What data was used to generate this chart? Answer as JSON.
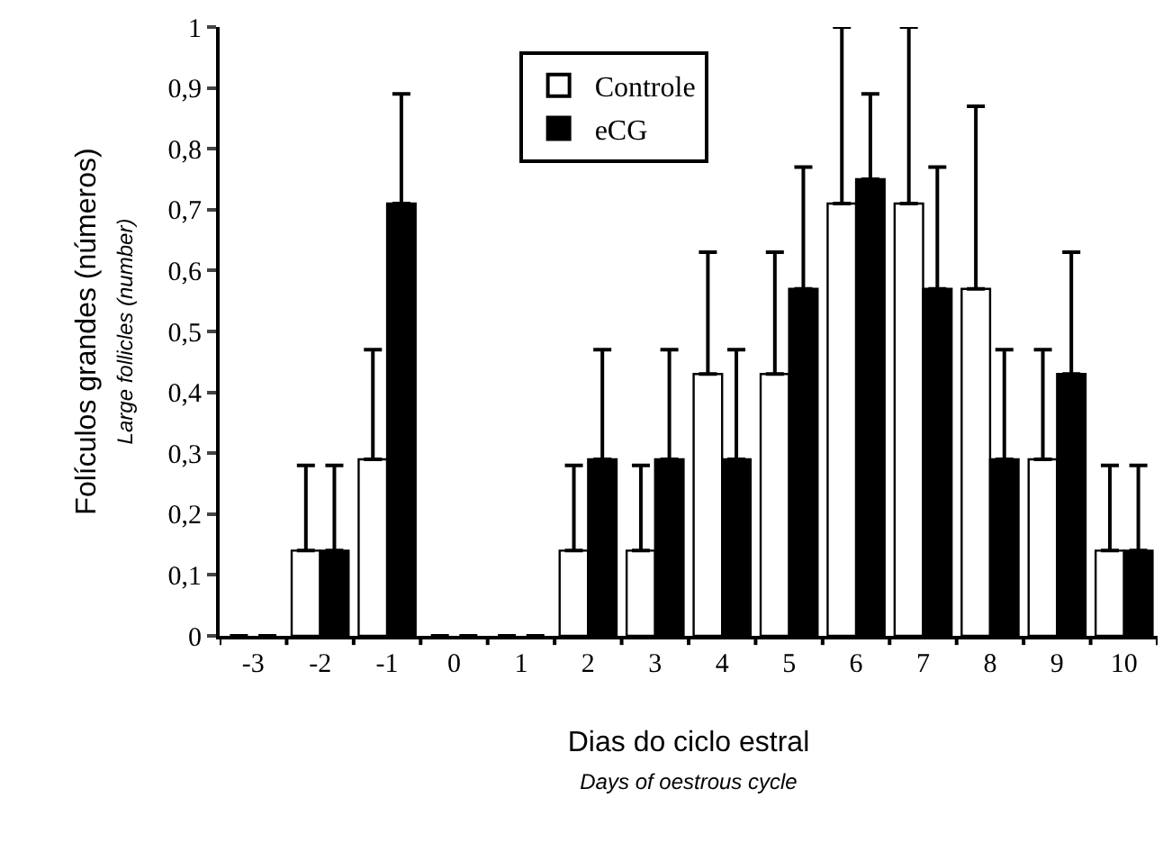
{
  "chart_data": {
    "type": "bar",
    "categories": [
      "-3",
      "-2",
      "-1",
      "0",
      "1",
      "2",
      "3",
      "4",
      "5",
      "6",
      "7",
      "8",
      "9",
      "10"
    ],
    "series": [
      {
        "name": "Controle",
        "color": "#ffffff",
        "values": [
          0,
          0.14,
          0.29,
          0,
          0,
          0.14,
          0.14,
          0.43,
          0.43,
          0.71,
          0.71,
          0.57,
          0.29,
          0.14
        ],
        "errors": [
          null,
          [
            0.14,
            0.28
          ],
          [
            0.29,
            0.47
          ],
          null,
          null,
          [
            0.14,
            0.28
          ],
          [
            0.14,
            0.28
          ],
          [
            0.43,
            0.63
          ],
          [
            0.43,
            0.63
          ],
          [
            0.71,
            1
          ],
          [
            0.71,
            1
          ],
          [
            0.57,
            0.87
          ],
          [
            0.29,
            0.47
          ],
          [
            0.14,
            0.28
          ]
        ]
      },
      {
        "name": "eCG",
        "color": "#000000",
        "values": [
          0,
          0.14,
          0.71,
          0,
          0,
          0.29,
          0.29,
          0.29,
          0.57,
          0.75,
          0.57,
          0.29,
          0.43,
          0.14
        ],
        "errors": [
          null,
          [
            0.14,
            0.28
          ],
          [
            0.71,
            0.89
          ],
          null,
          null,
          [
            0.29,
            0.47
          ],
          [
            0.29,
            0.47
          ],
          [
            0.29,
            0.47
          ],
          [
            0.57,
            0.77
          ],
          [
            0.75,
            0.89
          ],
          [
            0.57,
            0.77
          ],
          [
            0.29,
            0.47
          ],
          [
            0.43,
            0.63
          ],
          [
            0.14,
            0.28
          ]
        ]
      }
    ],
    "xlabel": "Dias do ciclo estral\nDays of oestrous cycle",
    "ylabel": "Folículos grandes (números)\nLarge follicles (number)",
    "ylim": [
      0,
      1
    ],
    "yticks": [
      0,
      {
        "value": 0.1,
        "label": "0,1"
      },
      {
        "value": 0.2,
        "label": "0,2"
      },
      {
        "value": 0.3,
        "label": "0,3"
      },
      {
        "value": 0.4,
        "label": "0,4"
      },
      {
        "value": 0.5,
        "label": "0,5"
      },
      {
        "value": 0.6,
        "label": "0,6"
      },
      {
        "value": 0.7,
        "label": "0,7"
      },
      {
        "value": 0.8,
        "label": "0,8"
      },
      {
        "value": 0.9,
        "label": "0,9"
      },
      1
    ],
    "legend": "top"
  }
}
